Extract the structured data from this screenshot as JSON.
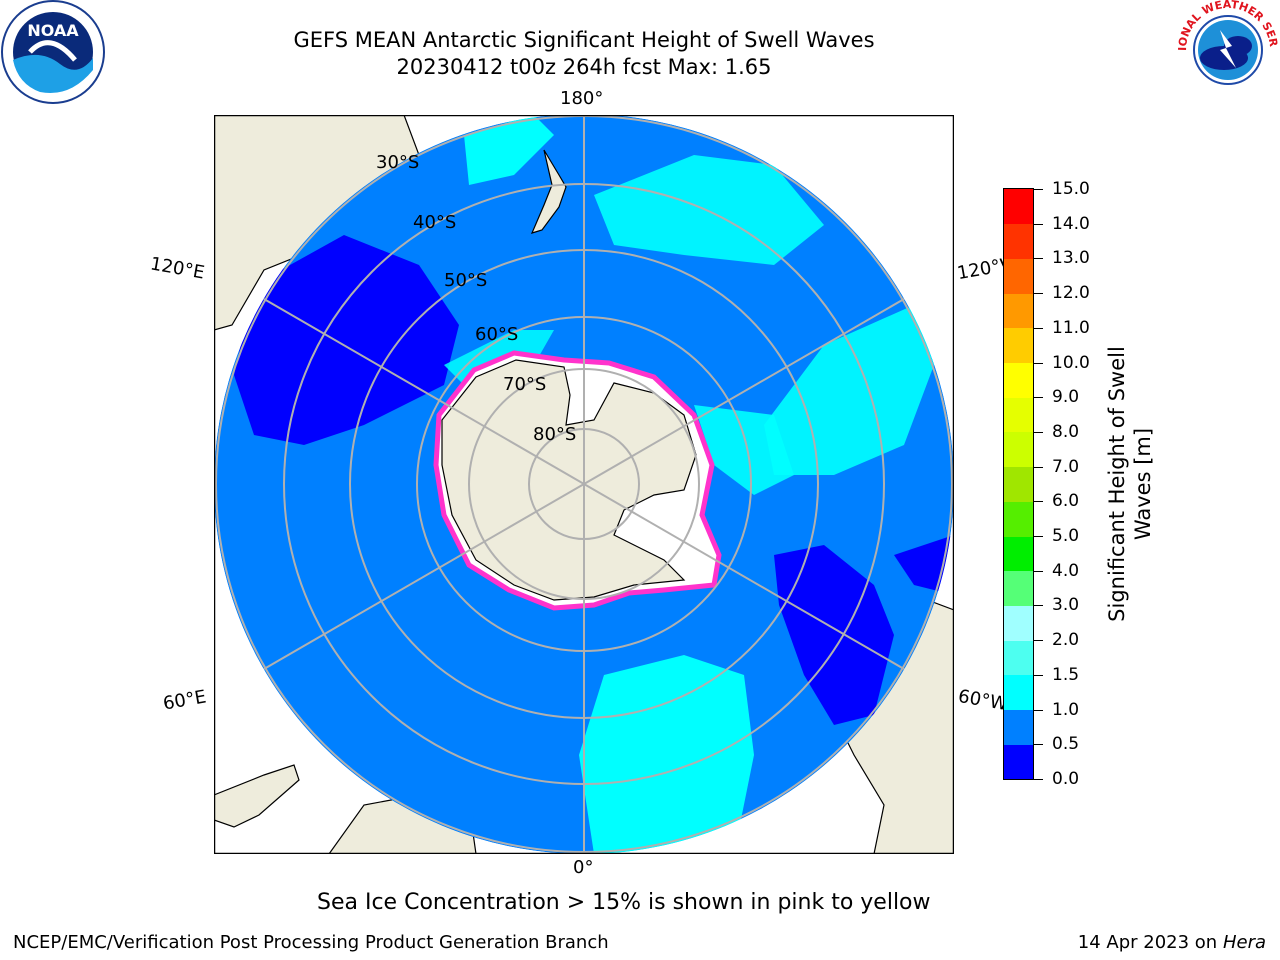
{
  "header": {
    "title_line1": "GEFS MEAN Antarctic Significant Height of Swell Waves",
    "title_line2": "20230412 t00z 264h fcst   Max: 1.65"
  },
  "logos": {
    "left": {
      "name": "noaa-logo",
      "text": "NOAA"
    },
    "right": {
      "name": "national-weather-service-logo",
      "text": "NATIONAL WEATHER SERVICE"
    }
  },
  "map": {
    "projection": "south-polar-stereographic",
    "longitude_labels": {
      "top": "180°",
      "bottom": "0°",
      "upper_left": "120°E",
      "upper_right": "120°W",
      "lower_left": "60°E",
      "lower_right": "60°W"
    },
    "latitude_labels": [
      "30°S",
      "40°S",
      "50°S",
      "60°S",
      "70°S",
      "80°S"
    ],
    "colors": {
      "land": "#eeecdc",
      "ocean_0_5_1_0": "#0080ff",
      "ocean_0_0_5": "#0000ff",
      "ocean_1_0_1_5": "#00ffff",
      "ice_edge": "#ff33cc",
      "gridline": "#b0b0b0"
    }
  },
  "colorbar": {
    "label_line1": "Significant Height of Swell",
    "label_line2": "Waves [m]",
    "ticks": [
      "0.0",
      "0.5",
      "1.0",
      "1.5",
      "2.0",
      "3.0",
      "4.0",
      "5.0",
      "6.0",
      "7.0",
      "8.0",
      "9.0",
      "10.0",
      "11.0",
      "12.0",
      "13.0",
      "14.0",
      "15.0"
    ],
    "colors": [
      "#0000ff",
      "#0080ff",
      "#00ffff",
      "#4dfff0",
      "#a0ffff",
      "#55ff77",
      "#00ee00",
      "#55ee00",
      "#a0e600",
      "#ccff00",
      "#e5ff00",
      "#ffff00",
      "#ffcc00",
      "#ff9900",
      "#ff6600",
      "#ff3300",
      "#ff0000"
    ]
  },
  "note": "Sea Ice Concentration > 15% is shown in pink to yellow",
  "footer": {
    "left": "NCEP/EMC/Verification Post Processing Product Generation Branch",
    "right_prefix": "14 Apr 2023 on ",
    "right_host": "Hera"
  }
}
